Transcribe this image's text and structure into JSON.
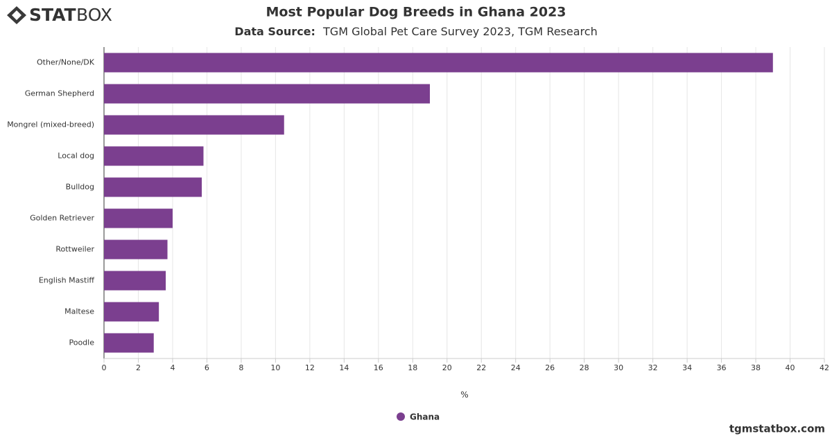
{
  "logo": {
    "bold": "STAT",
    "light": "BOX"
  },
  "footer": "tgmstatbox.com",
  "chart_data": {
    "type": "bar",
    "orientation": "horizontal",
    "title": "Most Popular Dog Breeds in Ghana 2023",
    "subtitle_label": "Data Source:",
    "subtitle": "TGM Global Pet Care Survey 2023, TGM Research",
    "x_label": "%",
    "categories": [
      "Other/None/DK",
      "German Shepherd",
      "Mongrel (mixed-breed)",
      "Local dog",
      "Bulldog",
      "Golden Retriever",
      "Rottweiler",
      "English Mastiff",
      "Maltese",
      "Poodle"
    ],
    "series": [
      {
        "name": "Ghana",
        "color": "#7b3f8f",
        "values": [
          39.0,
          19.0,
          10.5,
          5.8,
          5.7,
          4.0,
          3.7,
          3.6,
          3.2,
          2.9
        ]
      }
    ],
    "xlim": [
      0,
      42
    ],
    "xticks": [
      0,
      2,
      4,
      6,
      8,
      10,
      12,
      14,
      16,
      18,
      20,
      22,
      24,
      26,
      28,
      30,
      32,
      34,
      36,
      38,
      40,
      42
    ],
    "grid": true
  }
}
